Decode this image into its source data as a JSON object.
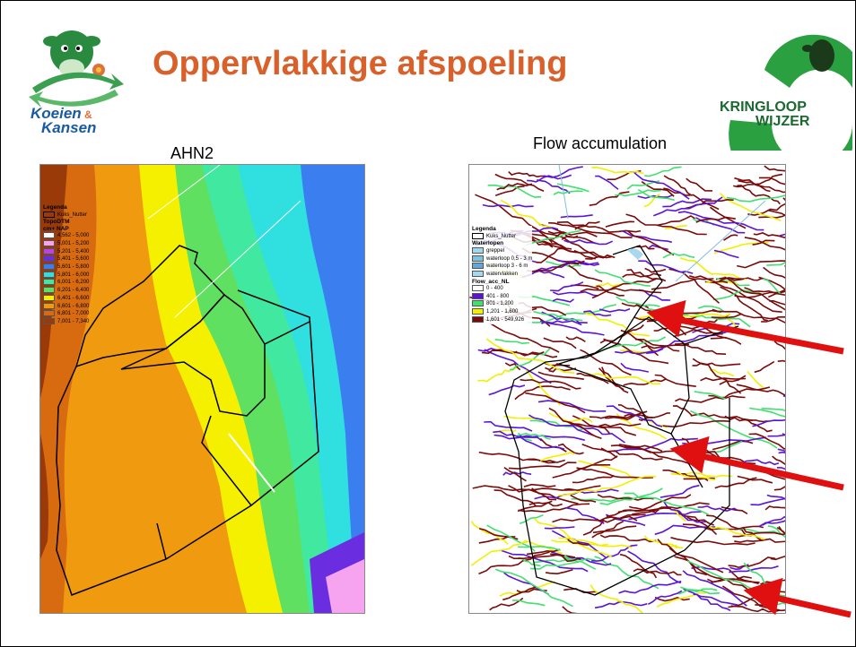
{
  "slide": {
    "title": "Oppervlakkige afspoeling"
  },
  "logo_left": {
    "line1": "Koeien",
    "amp": "&",
    "line2": "Kansen"
  },
  "logo_right": {
    "line1": "KRINGLOOP",
    "line2": "WIJZER"
  },
  "left_map": {
    "caption": "AHN2",
    "legend": {
      "title": "Legenda",
      "boundary_label": "Kuks_Nutter",
      "layer": "TopoDTM",
      "unit": "cm+ NAP",
      "classes": [
        {
          "label": "4,562 - 5,000",
          "color": "#ffffff"
        },
        {
          "label": "5,001 - 5,200",
          "color": "#f6a3f0"
        },
        {
          "label": "5,201 - 5,400",
          "color": "#c040e0"
        },
        {
          "label": "5,401 - 5,600",
          "color": "#6a2ee0"
        },
        {
          "label": "5,601 - 5,800",
          "color": "#3a7ef0"
        },
        {
          "label": "5,801 - 6,000",
          "color": "#30e0e0"
        },
        {
          "label": "6,001 - 6,200",
          "color": "#40e8a0"
        },
        {
          "label": "6,201 - 6,400",
          "color": "#60e060"
        },
        {
          "label": "6,401 - 6,600",
          "color": "#f4f000"
        },
        {
          "label": "6,601 - 6,800",
          "color": "#f09a10"
        },
        {
          "label": "6,801 - 7,000",
          "color": "#d86a10"
        },
        {
          "label": "7,001 - 7,340",
          "color": "#9a3a08"
        }
      ]
    }
  },
  "right_map": {
    "caption": "Flow accumulation",
    "legend": {
      "title": "Legenda",
      "boundary_label": "Kuks_Nutter",
      "waterlopen_title": "Waterlopen",
      "waterlopen": [
        {
          "label": "greppel",
          "color": "#9fd8e8"
        },
        {
          "label": "waterloop 0,5 - 3 m",
          "color": "#7fc0e0"
        },
        {
          "label": "waterloop 3 - 6 m",
          "color": "#5fa8d8"
        },
        {
          "label": "watervlakken",
          "color": "#a8d8f0"
        }
      ],
      "flow_title": "Flow_acc_NL",
      "flow_classes": [
        {
          "label": "0 - 400",
          "color": "#ffffff"
        },
        {
          "label": "401 - 800",
          "color": "#5a14d8"
        },
        {
          "label": "801 - 1,200",
          "color": "#40e070"
        },
        {
          "label": "1,201 - 1,600",
          "color": "#f0f000"
        },
        {
          "label": "1,601 - 549,926",
          "color": "#7a0a0a"
        }
      ]
    }
  },
  "colors": {
    "title": "#d9602a",
    "arrow": "#e01010",
    "logo_green": "#2aa040",
    "logo_blue": "#1a5aa0"
  }
}
